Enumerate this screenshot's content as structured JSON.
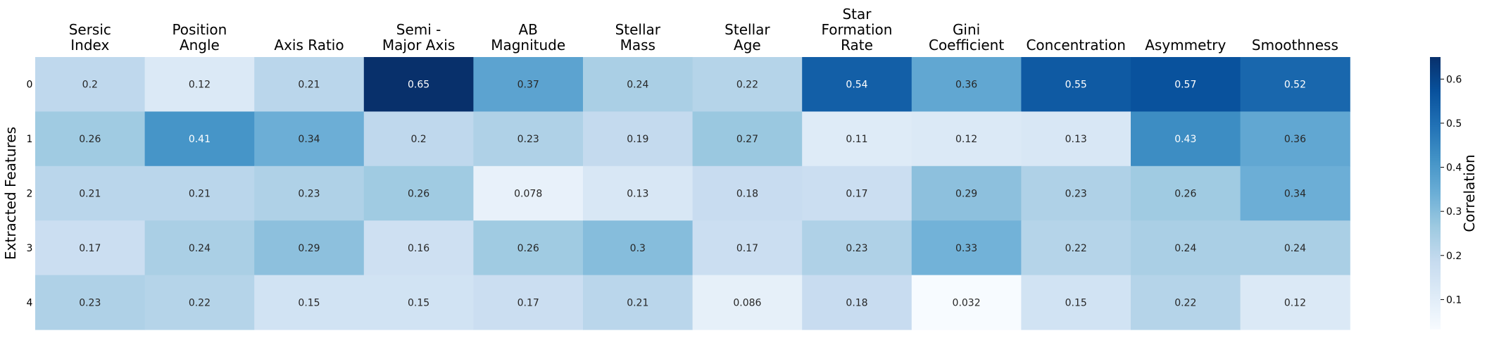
{
  "chart_data": {
    "type": "heatmap",
    "columns": [
      [
        "Sersic",
        "Index"
      ],
      [
        "Position",
        "Angle"
      ],
      [
        "Axis Ratio"
      ],
      [
        "Semi -",
        "Major Axis"
      ],
      [
        "AB",
        "Magnitude"
      ],
      [
        "Stellar",
        "Mass"
      ],
      [
        "Stellar",
        "Age"
      ],
      [
        "Star",
        "Formation",
        "Rate"
      ],
      [
        "Gini",
        "Coefficient"
      ],
      [
        "Concentration"
      ],
      [
        "Asymmetry"
      ],
      [
        "Smoothness"
      ]
    ],
    "rows": [
      "0",
      "1",
      "2",
      "3",
      "4"
    ],
    "values": [
      [
        0.2,
        0.12,
        0.21,
        0.65,
        0.37,
        0.24,
        0.22,
        0.54,
        0.36,
        0.55,
        0.57,
        0.52
      ],
      [
        0.26,
        0.41,
        0.34,
        0.2,
        0.23,
        0.19,
        0.27,
        0.11,
        0.12,
        0.13,
        0.43,
        0.36
      ],
      [
        0.21,
        0.21,
        0.23,
        0.26,
        0.078,
        0.13,
        0.18,
        0.17,
        0.29,
        0.23,
        0.26,
        0.34
      ],
      [
        0.17,
        0.24,
        0.29,
        0.16,
        0.26,
        0.3,
        0.17,
        0.23,
        0.33,
        0.22,
        0.24,
        0.24
      ],
      [
        0.23,
        0.22,
        0.15,
        0.15,
        0.17,
        0.21,
        0.086,
        0.18,
        0.032,
        0.15,
        0.22,
        0.12
      ]
    ],
    "ylabel": "Extracted Features",
    "colorbar": {
      "label": "Correlation",
      "range": [
        0.032,
        0.65
      ],
      "ticks": [
        "0.1",
        "0.2",
        "0.3",
        "0.4",
        "0.5",
        "0.6"
      ]
    },
    "colormap": "Blues",
    "grid": false
  }
}
